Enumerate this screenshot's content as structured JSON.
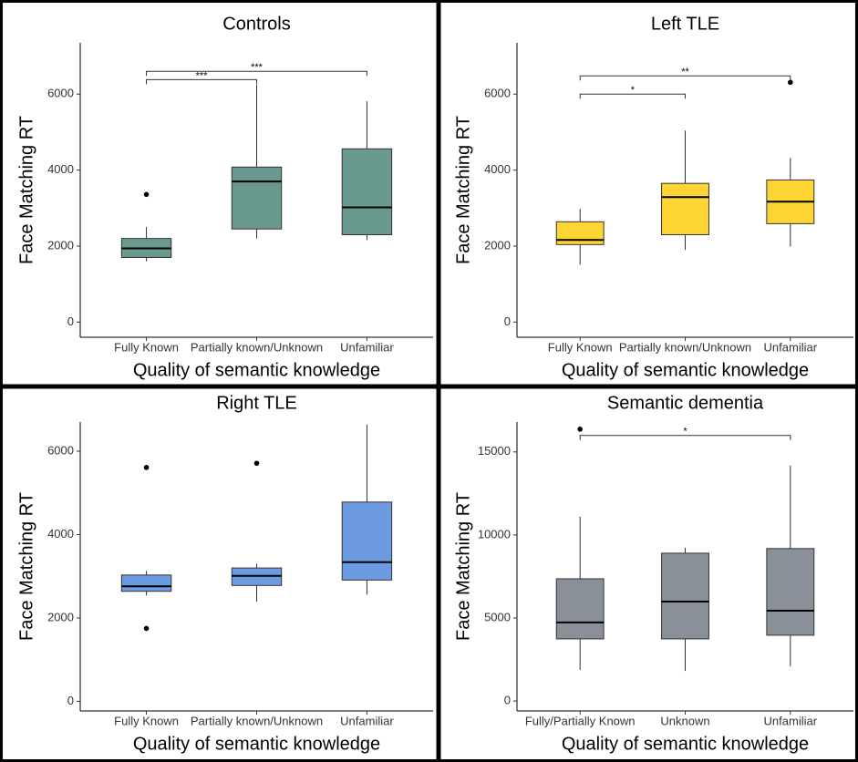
{
  "chart_data": [
    {
      "type": "box",
      "title": "Controls",
      "xlabel": "Quality of semantic knowledge",
      "ylabel": "Face Matching RT",
      "categories": [
        "Fully Known",
        "Partially known/Unknown",
        "Unfamiliar"
      ],
      "color": "#6a9a8f",
      "boxes": [
        {
          "min": 1600,
          "q1": 1700,
          "median": 1940,
          "q3": 2200,
          "max": 2500,
          "outliers": [
            3360
          ]
        },
        {
          "min": 2200,
          "q1": 2450,
          "median": 3700,
          "q3": 4080,
          "max": 6240
        },
        {
          "min": 2160,
          "q1": 2300,
          "median": 3020,
          "q3": 4560,
          "max": 5810
        }
      ],
      "significance": [
        {
          "pair": [
            "Fully Known",
            "Partially known/Unknown"
          ],
          "y": 6380,
          "label": "***"
        },
        {
          "pair": [
            "Fully Known",
            "Unfamiliar"
          ],
          "y": 6600,
          "label": "***"
        }
      ],
      "ylim": [
        -400,
        7350
      ],
      "yticks": [
        0,
        2000,
        4000,
        6000
      ],
      "grid": false
    },
    {
      "type": "box",
      "title": "Left TLE",
      "xlabel": "Quality of semantic knowledge",
      "ylabel": "Face Matching RT",
      "categories": [
        "Fully Known",
        "Partially known/Unknown",
        "Unfamiliar"
      ],
      "color": "#fdd535",
      "boxes": [
        {
          "min": 1510,
          "q1": 2040,
          "median": 2160,
          "q3": 2640,
          "max": 2980
        },
        {
          "min": 1900,
          "q1": 2300,
          "median": 3290,
          "q3": 3650,
          "max": 5040
        },
        {
          "min": 1990,
          "q1": 2590,
          "median": 3170,
          "q3": 3740,
          "max": 4320,
          "outliers": [
            6310
          ]
        }
      ],
      "significance": [
        {
          "pair": [
            "Fully Known",
            "Partially known/Unknown"
          ],
          "y": 6000,
          "label": "*"
        },
        {
          "pair": [
            "Fully Known",
            "Unfamiliar"
          ],
          "y": 6480,
          "label": "**"
        }
      ],
      "ylim": [
        -400,
        7350
      ],
      "yticks": [
        0,
        2000,
        4000,
        6000
      ],
      "grid": false
    },
    {
      "type": "box",
      "title": "Right TLE",
      "xlabel": "Quality of semantic knowledge",
      "ylabel": "Face Matching RT",
      "categories": [
        "Fully Known",
        "Partially known/Unknown",
        "Unfamiliar"
      ],
      "color": "#6d9be2",
      "boxes": [
        {
          "min": 2540,
          "q1": 2640,
          "median": 2760,
          "q3": 3030,
          "max": 3130,
          "outliers": [
            1750,
            5610
          ]
        },
        {
          "min": 2390,
          "q1": 2780,
          "median": 3010,
          "q3": 3200,
          "max": 3300,
          "outliers": [
            5710
          ]
        },
        {
          "min": 2560,
          "q1": 2910,
          "median": 3340,
          "q3": 4780,
          "max": 6640
        }
      ],
      "ylim": [
        -230,
        6700
      ],
      "yticks": [
        0,
        2000,
        4000,
        6000
      ],
      "grid": false
    },
    {
      "type": "box",
      "title": "Semantic dementia",
      "xlabel": "Quality of semantic knowledge",
      "ylabel": "Face Matching RT",
      "categories": [
        "Fully/Partially Known",
        "Unknown",
        "Unfamiliar"
      ],
      "color": "#8a9097",
      "boxes": [
        {
          "min": 1870,
          "q1": 3740,
          "median": 4730,
          "q3": 7360,
          "max": 11100,
          "outliers": [
            16370
          ]
        },
        {
          "min": 1810,
          "q1": 3740,
          "median": 5990,
          "q3": 8900,
          "max": 9230
        },
        {
          "min": 2090,
          "q1": 3960,
          "median": 5440,
          "q3": 9180,
          "max": 14180
        }
      ],
      "significance": [
        {
          "pair": [
            "Fully/Partially Known",
            "Unfamiliar"
          ],
          "y": 15990,
          "label": "*"
        }
      ],
      "ylim": [
        -600,
        16800
      ],
      "yticks": [
        0,
        5000,
        10000,
        15000
      ],
      "grid": false
    }
  ]
}
